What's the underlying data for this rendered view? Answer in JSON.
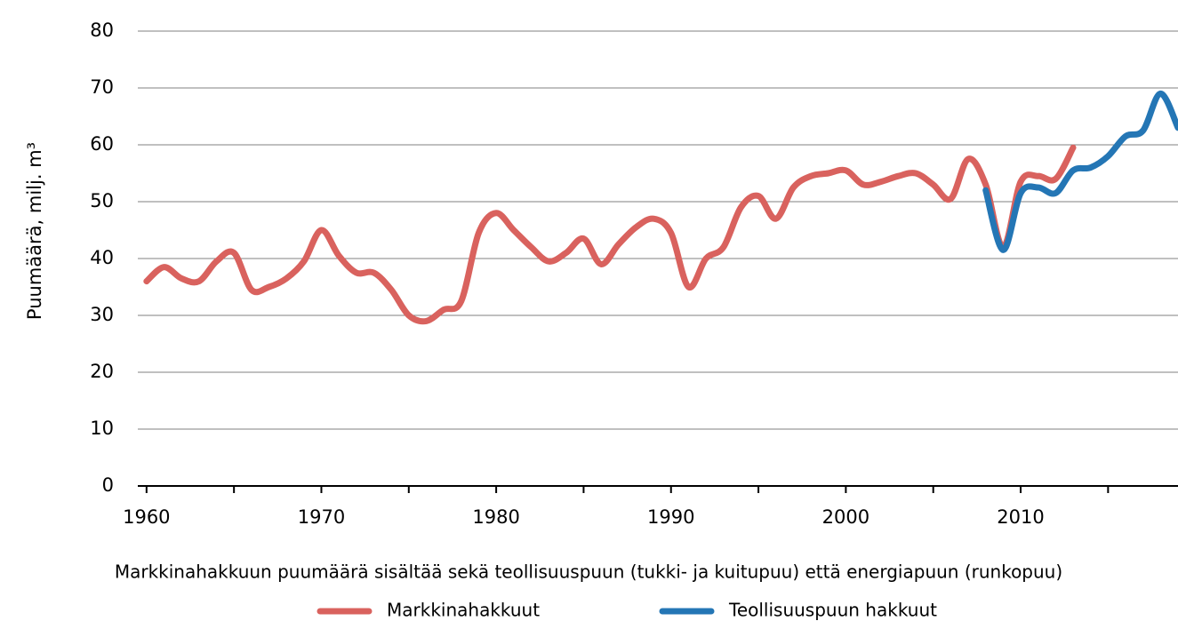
{
  "chart_data": {
    "type": "line",
    "ylabel": "Puumäärä, milj. m³",
    "caption": "Markkinahakkuun puumäärä sisältää sekä teollisuuspuun (tukki- ja kuitupuu) että energiapuun (runkopuu)",
    "xlim": [
      1959.5,
      2019
    ],
    "ylim": [
      0,
      80
    ],
    "xticks": [
      1960,
      1970,
      1980,
      1990,
      2000,
      2010
    ],
    "xminor_ticks": [
      1965,
      1975,
      1985,
      1995,
      2005,
      2015
    ],
    "yticks": [
      0,
      10,
      20,
      30,
      40,
      50,
      60,
      70,
      80
    ],
    "grid": true,
    "series": [
      {
        "name": "Markkinahakkuut",
        "color": "#d9625e",
        "x": [
          1960,
          1961,
          1962,
          1963,
          1964,
          1965,
          1966,
          1967,
          1968,
          1969,
          1970,
          1971,
          1972,
          1973,
          1974,
          1975,
          1976,
          1977,
          1978,
          1979,
          1980,
          1981,
          1982,
          1983,
          1984,
          1985,
          1986,
          1987,
          1988,
          1989,
          1990,
          1991,
          1992,
          1993,
          1994,
          1995,
          1996,
          1997,
          1998,
          1999,
          2000,
          2001,
          2002,
          2003,
          2004,
          2005,
          2006,
          2007,
          2008,
          2009,
          2010,
          2011,
          2012,
          2013
        ],
        "values": [
          36,
          38.5,
          36.5,
          36,
          39.5,
          41,
          34.5,
          35,
          36.5,
          39.5,
          45,
          40.5,
          37.5,
          37.5,
          34.5,
          30,
          29,
          31,
          32.5,
          44.5,
          48,
          45,
          42,
          39.5,
          41,
          43.5,
          39,
          42.5,
          45.5,
          47,
          44.5,
          35,
          40,
          42,
          49,
          51,
          47,
          52.5,
          54.5,
          55,
          55.5,
          53,
          53.5,
          54.5,
          55,
          53,
          50.5,
          57.5,
          53,
          42,
          53.5,
          54.5,
          54,
          59.5
        ]
      },
      {
        "name": "Teollisuuspuun hakkuut",
        "color": "#2476b5",
        "x": [
          2008,
          2009,
          2010,
          2011,
          2012,
          2013,
          2014,
          2015,
          2016,
          2017,
          2018,
          2019
        ],
        "values": [
          52,
          41.5,
          51.5,
          52.5,
          51.5,
          55.5,
          56,
          58,
          61.5,
          62.5,
          69,
          63
        ]
      }
    ]
  }
}
